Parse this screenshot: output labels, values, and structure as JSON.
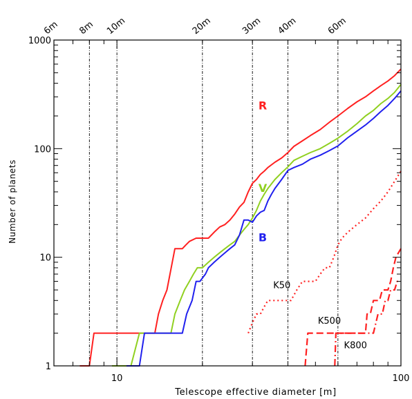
{
  "chart_data": {
    "type": "line",
    "title": "",
    "xlabel": "Telescope effective diameter [m]",
    "ylabel": "Number of planets",
    "xscale": "log",
    "yscale": "log",
    "xlim": [
      6,
      100
    ],
    "ylim": [
      1,
      1000
    ],
    "grid": false,
    "x_tick_labels": [
      {
        "value": 10,
        "label": "10"
      },
      {
        "value": 100,
        "label": "100"
      }
    ],
    "y_tick_labels": [
      {
        "value": 1,
        "label": "1"
      },
      {
        "value": 10,
        "label": "10"
      },
      {
        "value": 100,
        "label": "100"
      },
      {
        "value": 1000,
        "label": "1000"
      }
    ],
    "top_axis_labels": [
      {
        "value": 6,
        "label": "6m"
      },
      {
        "value": 8,
        "label": "8m"
      },
      {
        "value": 10,
        "label": "10m"
      },
      {
        "value": 20,
        "label": "20m"
      },
      {
        "value": 30,
        "label": "30m"
      },
      {
        "value": 40,
        "label": "40m"
      },
      {
        "value": 60,
        "label": "60m"
      }
    ],
    "reference_lines_x": [
      8,
      10,
      20,
      30,
      40,
      60
    ],
    "series": [
      {
        "name": "R",
        "color": "#ff2020",
        "style": "solid",
        "label_at": [
          31.5,
          230
        ],
        "x": [
          7.4,
          8.0,
          8.3,
          9.0,
          10.0,
          11.0,
          12.0,
          13.0,
          13.6,
          14.0,
          14.5,
          15.0,
          16.0,
          17.0,
          17.5,
          18.0,
          19.0,
          20.0,
          21.0,
          22.0,
          23.0,
          24.0,
          25.0,
          26.0,
          27.0,
          28.0,
          29.0,
          30.0,
          31.0,
          32.0,
          33.0,
          34.0,
          36.0,
          38.0,
          40.0,
          42.0,
          45.0,
          48.0,
          52.0,
          56.0,
          60.0,
          65.0,
          70.0,
          75.0,
          80.0,
          85.0,
          90.0,
          95.0,
          100.0
        ],
        "y": [
          1,
          1,
          2,
          2,
          2,
          2,
          2,
          2,
          2,
          3,
          4,
          5,
          12,
          12,
          13,
          14,
          15,
          15,
          15,
          17,
          19,
          20,
          22,
          25,
          29,
          32,
          40,
          48,
          52,
          58,
          62,
          67,
          75,
          82,
          92,
          105,
          118,
          132,
          150,
          175,
          200,
          235,
          270,
          300,
          340,
          380,
          420,
          470,
          540
        ]
      },
      {
        "name": "V",
        "color": "#90d020",
        "style": "solid",
        "label_at": [
          31.5,
          40
        ],
        "x": [
          9.6,
          10.5,
          11.2,
          12.0,
          13.0,
          14.0,
          15.0,
          15.5,
          16.0,
          16.7,
          17.3,
          18.0,
          18.6,
          19.2,
          20.0,
          21.0,
          22.0,
          23.0,
          24.0,
          25.0,
          26.0,
          27.0,
          28.0,
          29.0,
          30.0,
          31.0,
          32.0,
          33.0,
          34.0,
          36.0,
          38.0,
          40.0,
          42.0,
          45.0,
          48.0,
          52.0,
          56.0,
          60.0,
          65.0,
          70.0,
          75.0,
          80.0,
          85.0,
          90.0,
          95.0,
          100.0
        ],
        "y": [
          1,
          1,
          1,
          2,
          2,
          2,
          2,
          2,
          3,
          4,
          5,
          6,
          7,
          8,
          8,
          9,
          10,
          11,
          12,
          13,
          14,
          16,
          18,
          20,
          23,
          27,
          33,
          38,
          43,
          52,
          60,
          68,
          78,
          85,
          92,
          100,
          112,
          125,
          145,
          170,
          200,
          225,
          260,
          290,
          330,
          390
        ]
      },
      {
        "name": "B",
        "color": "#2020ee",
        "style": "solid",
        "label_at": [
          31.5,
          14
        ],
        "x": [
          10.8,
          11.6,
          12.0,
          12.5,
          13.0,
          14.0,
          15.0,
          16.0,
          17.0,
          17.6,
          18.4,
          19.0,
          19.6,
          20.5,
          21.0,
          22.0,
          23.0,
          24.0,
          25.0,
          26.0,
          27.0,
          28.0,
          29.0,
          30.0,
          31.0,
          32.0,
          33.0,
          34.0,
          35.0,
          36.0,
          38.0,
          40.0,
          42.0,
          45.0,
          48.0,
          52.0,
          56.0,
          60.0,
          65.0,
          70.0,
          75.0,
          80.0,
          85.0,
          90.0,
          95.0,
          100.0
        ],
        "y": [
          1,
          1,
          1,
          2,
          2,
          2,
          2,
          2,
          2,
          3,
          4,
          6,
          6,
          7,
          8,
          9,
          10,
          11,
          12,
          13,
          16,
          22,
          22,
          21,
          24,
          26,
          27,
          33,
          38,
          43,
          52,
          63,
          67,
          72,
          80,
          87,
          96,
          106,
          126,
          145,
          165,
          190,
          220,
          250,
          290,
          340
        ]
      },
      {
        "name": "K50",
        "color": "#ff2020",
        "style": "dotted",
        "label_at": [
          35.5,
          5.2
        ],
        "x": [
          29.0,
          30.0,
          31.0,
          32.0,
          33.0,
          34.0,
          35.0,
          36.0,
          40.0,
          41.0,
          43.0,
          45.0,
          48.0,
          50.0,
          52.0,
          54.0,
          56.0,
          58.0,
          60.0,
          62.0,
          65.0,
          70.0,
          75.0,
          80.0,
          85.0,
          90.0,
          95.0,
          100.0
        ],
        "y": [
          2,
          2.5,
          3,
          3,
          3.5,
          4,
          4,
          4,
          4,
          4,
          5,
          6,
          6,
          6,
          7,
          8,
          8,
          10,
          13,
          15,
          17,
          20,
          23,
          28,
          33,
          40,
          50,
          62
        ]
      },
      {
        "name": "K500",
        "color": "#ff2020",
        "style": "dashed",
        "label_at": [
          51,
          2.45
        ],
        "x": [
          46.0,
          47.0,
          48.0,
          60.0,
          70.0,
          75.0,
          76.0,
          78.0,
          80.0,
          81.0,
          82.0,
          84.0,
          86.0,
          88.0,
          90.0,
          92.0,
          94.0,
          96.0,
          98.0,
          100.0
        ],
        "y": [
          1,
          2,
          2,
          2,
          2,
          2,
          3,
          3,
          4,
          4,
          4,
          4,
          5,
          5,
          5,
          6,
          8,
          10,
          11,
          12
        ]
      },
      {
        "name": "K800",
        "color": "#ff2020",
        "style": "dash-dot",
        "label_at": [
          63,
          1.45
        ],
        "x": [
          58.5,
          59.0,
          60.0,
          62.0,
          65.0,
          70.0,
          75.0,
          80.0,
          83.0,
          86.0,
          88.0,
          90.0,
          92.0,
          95.0,
          97.0,
          100.0
        ],
        "y": [
          1,
          2,
          2,
          2,
          2,
          2,
          2,
          2,
          3,
          3,
          4,
          4,
          5,
          5,
          6,
          6
        ]
      }
    ]
  }
}
